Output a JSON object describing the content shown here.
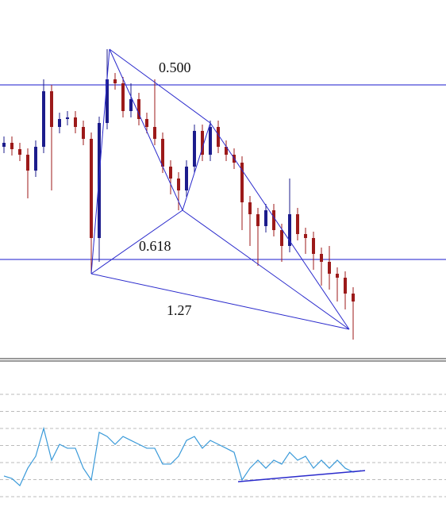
{
  "chart_data": [
    {
      "type": "candlestick",
      "x": [
        0,
        1,
        2,
        3,
        4,
        5,
        6,
        7,
        8,
        9,
        10,
        11,
        12,
        13,
        14,
        15,
        16,
        17,
        18,
        19,
        20,
        21,
        22,
        23,
        24,
        25,
        26,
        27,
        28,
        29,
        30,
        31,
        32,
        33,
        34,
        35,
        36,
        37,
        38,
        39,
        40,
        41,
        42,
        43,
        44
      ],
      "open": [
        265,
        270,
        262,
        255,
        235,
        265,
        335,
        290,
        300,
        302,
        290,
        275,
        150,
        295,
        350,
        345,
        310,
        325,
        300,
        290,
        275,
        240,
        225,
        210,
        240,
        285,
        255,
        290,
        265,
        255,
        245,
        195,
        180,
        165,
        185,
        160,
        140,
        180,
        155,
        150,
        130,
        120,
        105,
        100,
        80
      ],
      "high": [
        278,
        278,
        270,
        263,
        273,
        350,
        343,
        308,
        310,
        310,
        298,
        283,
        303,
        388,
        358,
        353,
        345,
        333,
        308,
        350,
        283,
        248,
        233,
        248,
        293,
        293,
        298,
        298,
        273,
        263,
        253,
        203,
        188,
        193,
        193,
        168,
        225,
        188,
        163,
        158,
        138,
        140,
        113,
        108,
        88
      ],
      "low": [
        257,
        254,
        247,
        200,
        227,
        257,
        210,
        282,
        292,
        282,
        267,
        105,
        120,
        287,
        337,
        302,
        302,
        292,
        282,
        267,
        232,
        205,
        185,
        202,
        232,
        247,
        247,
        257,
        247,
        237,
        160,
        140,
        115,
        157,
        152,
        120,
        132,
        147,
        130,
        110,
        90,
        85,
        70,
        60,
        22
      ],
      "close": [
        270,
        262,
        255,
        235,
        265,
        335,
        290,
        300,
        302,
        290,
        275,
        150,
        295,
        350,
        345,
        310,
        325,
        300,
        290,
        275,
        240,
        225,
        210,
        240,
        285,
        255,
        290,
        265,
        255,
        245,
        195,
        180,
        165,
        185,
        160,
        140,
        180,
        155,
        150,
        130,
        120,
        105,
        100,
        80,
        70
      ],
      "up_color": "#1c1c8c",
      "down_color": "#9c1a1a",
      "xlim": [
        -0.5,
        55.7
      ],
      "ylim": [
        0,
        450
      ],
      "hlines": [
        343,
        123
      ],
      "hline_color": "#1a1acc",
      "pattern": {
        "x": [
          11,
          13.3,
          22.5,
          26,
          43.5
        ],
        "values": [
          105,
          388,
          185,
          295,
          35
        ],
        "color": "#2a2acc"
      },
      "annotations": [
        "0.500",
        "0.618",
        "1.27"
      ]
    },
    {
      "type": "line",
      "x": [
        0,
        1,
        2,
        3,
        4,
        5,
        6,
        7,
        8,
        9,
        10,
        11,
        12,
        13,
        14,
        15,
        16,
        17,
        18,
        19,
        20,
        21,
        22,
        23,
        24,
        25,
        26,
        27,
        28,
        29,
        30,
        31,
        32,
        33,
        34,
        35,
        36,
        37,
        38,
        39,
        40,
        41,
        42,
        43,
        44,
        45
      ],
      "values": [
        22.1,
        20.7,
        16.5,
        26.7,
        33.7,
        50.0,
        31.4,
        40.7,
        38.4,
        38.4,
        26.7,
        19.8,
        47.7,
        45.3,
        40.7,
        45.3,
        43.0,
        40.7,
        38.4,
        38.4,
        29.1,
        29.1,
        33.7,
        43.0,
        45.3,
        38.4,
        43.0,
        40.7,
        38.4,
        36.0,
        19.8,
        26.7,
        31.4,
        26.7,
        31.4,
        29.1,
        36.0,
        31.4,
        33.7,
        26.7,
        31.4,
        26.7,
        31.4,
        26.7,
        24.4,
        25.3
      ],
      "color": "#3a9ad9",
      "xlim": [
        -0.5,
        55.7
      ],
      "ylim": [
        5,
        80
      ],
      "grid": [
        10,
        20,
        30,
        40,
        50,
        60,
        70
      ],
      "trendline": {
        "x": [
          29.5,
          45.5
        ],
        "values": [
          18.8,
          25.3
        ],
        "color": "#2a2acc"
      }
    }
  ]
}
